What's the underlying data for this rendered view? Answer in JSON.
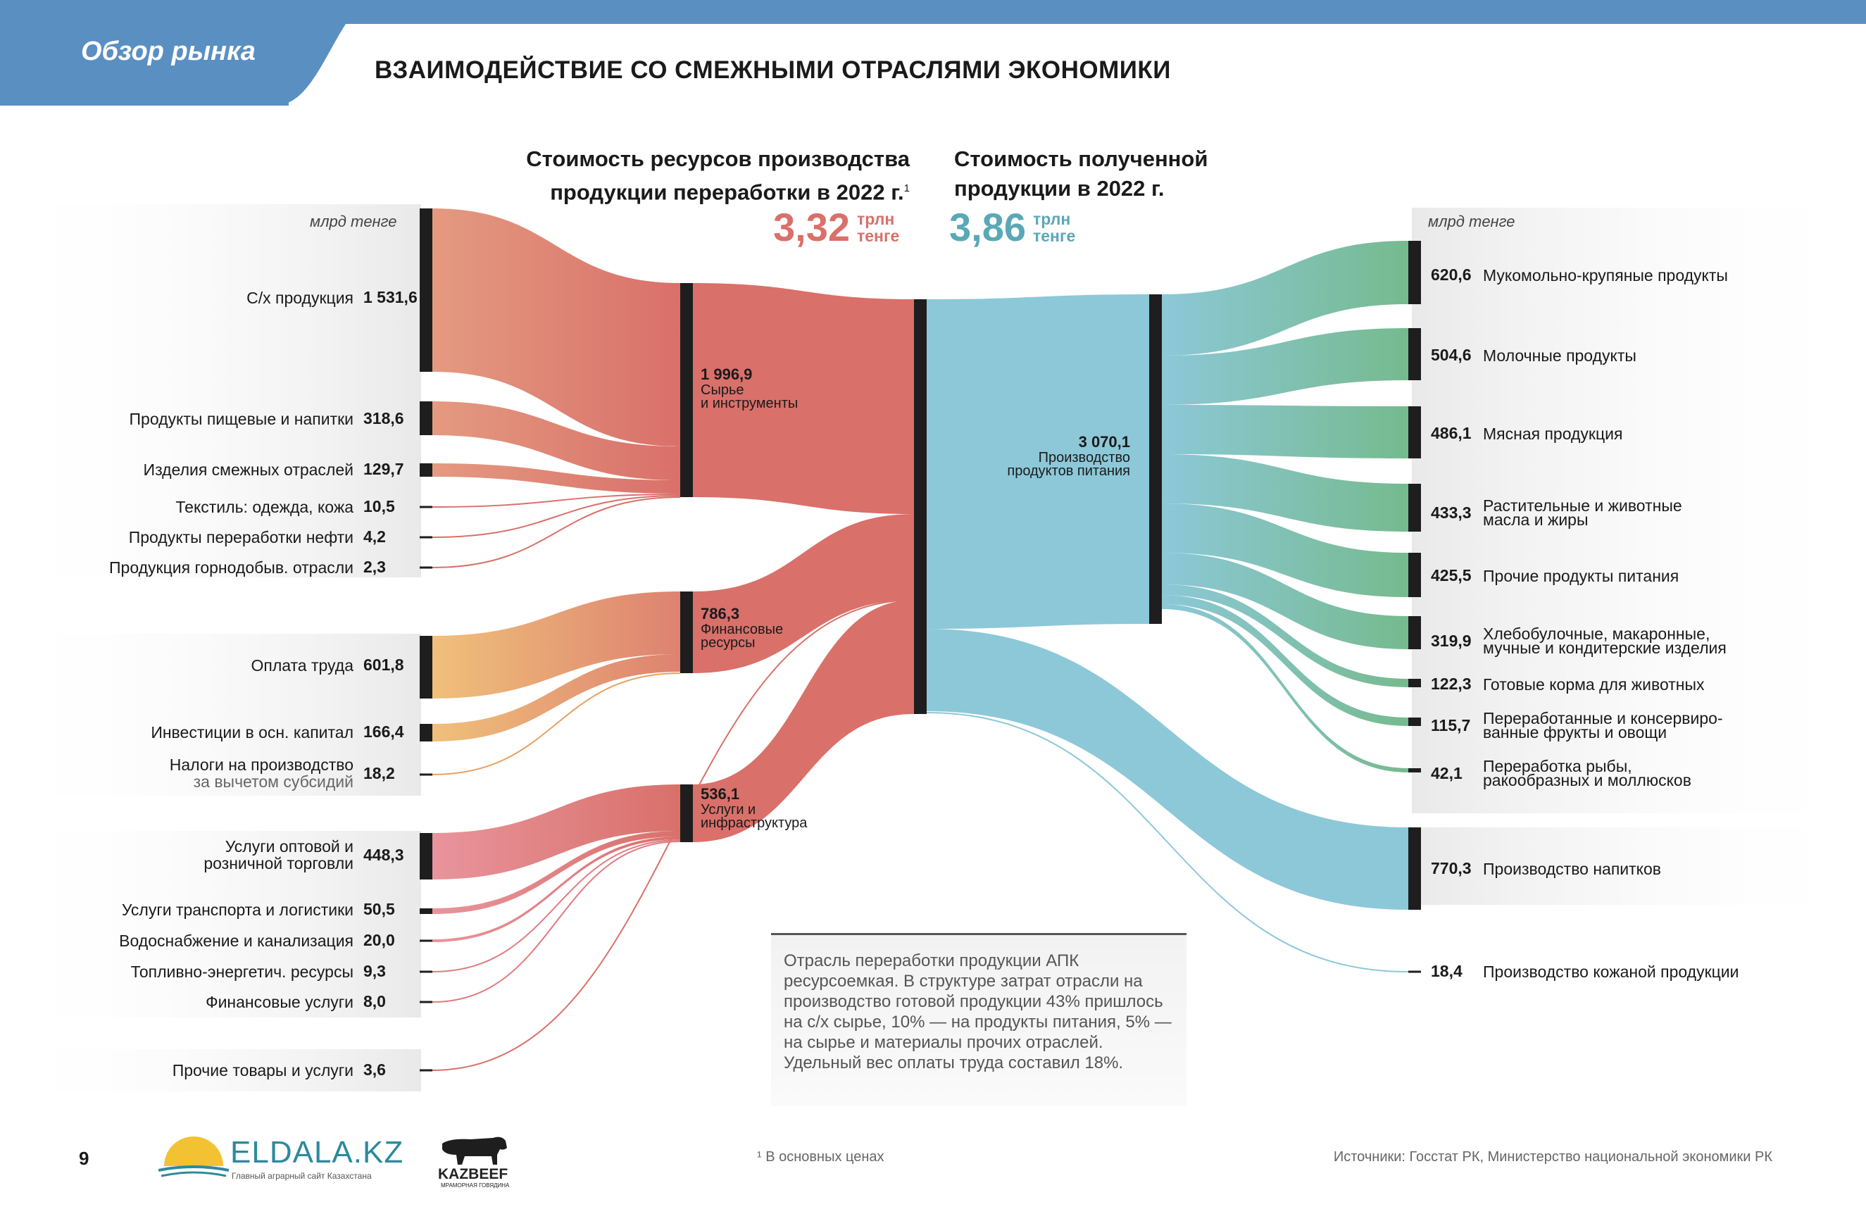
{
  "header": {
    "tagline": "Обзор рынка",
    "title": "ВЗАИМОДЕЙСТВИЕ СО СМЕЖНЫМИ ОТРАСЛЯМИ ЭКОНОМИКИ"
  },
  "left_header": {
    "line1": "Стоимость ресурсов производства",
    "line2": "продукции переработки в 2022 г.",
    "sup": "1",
    "total": "3,32",
    "unit1": "трлн",
    "unit2": "тенге"
  },
  "right_header": {
    "line1": "Стоимость полученной",
    "line2": "продукции в 2022 г.",
    "total": "3,86",
    "unit1": "трлн",
    "unit2": "тенге"
  },
  "units_label": "млрд тенге",
  "colors": {
    "topbar": "#5a8fc2",
    "red": "#d9706a",
    "orange": "#f0b870",
    "pink": "#e89098",
    "teal": "#8cc8d8",
    "green": "#76ba8e",
    "node": "#1e1e1e",
    "total_left": "#d9706a",
    "total_right": "#5aa8b6"
  },
  "inputs": [
    {
      "label": "С/х продукция",
      "sub": "",
      "value": "1 531,6"
    },
    {
      "label": "Продукты пищевые и напитки",
      "sub": "",
      "value": "318,6"
    },
    {
      "label": "Изделия смежных отраслей",
      "sub": "",
      "value": "129,7"
    },
    {
      "label": "Текстиль: одежда, кожа",
      "sub": "",
      "value": "10,5"
    },
    {
      "label": "Продукты переработки нефти",
      "sub": "",
      "value": "4,2"
    },
    {
      "label": "Продукция горнодобыв. отрасли",
      "sub": "",
      "value": "2,3"
    },
    {
      "label": "Оплата труда",
      "sub": "",
      "value": "601,8"
    },
    {
      "label": "Инвестиции в осн. капитал",
      "sub": "",
      "value": "166,4"
    },
    {
      "label": "Налоги на производство",
      "sub": "за вычетом субсидий",
      "value": "18,2"
    },
    {
      "label": "Услуги оптовой и",
      "label2": "розничной торговли",
      "sub": "",
      "value": "448,3"
    },
    {
      "label": "Услуги транспорта и логистики",
      "sub": "",
      "value": "50,5"
    },
    {
      "label": "Водоснабжение и канализация",
      "sub": "",
      "value": "20,0"
    },
    {
      "label": "Топливно-энергетич. ресурсы",
      "sub": "",
      "value": "9,3"
    },
    {
      "label": "Финансовые услуги",
      "sub": "",
      "value": "8,0"
    },
    {
      "label": "Прочие товары и услуги",
      "sub": "",
      "value": "3,6"
    }
  ],
  "groups": [
    {
      "value": "1 996,9",
      "label1": "Сырье",
      "label2": "и инструменты"
    },
    {
      "value": "786,3",
      "label1": "Финансовые",
      "label2": "ресурсы"
    },
    {
      "value": "536,1",
      "label1": "Услуги и",
      "label2": "инфраструктура"
    }
  ],
  "center_node": {
    "value": "3 070,1",
    "label1": "Производство",
    "label2": "продуктов питания"
  },
  "outputs": [
    {
      "value": "620,6",
      "label": "Мукомольно-крупяные продукты",
      "label2": ""
    },
    {
      "value": "504,6",
      "label": "Молочные продукты",
      "label2": ""
    },
    {
      "value": "486,1",
      "label": "Мясная продукция",
      "label2": ""
    },
    {
      "value": "433,3",
      "label": "Растительные и животные",
      "label2": "масла и жиры"
    },
    {
      "value": "425,5",
      "label": "Прочие продукты питания",
      "label2": ""
    },
    {
      "value": "319,9",
      "label": "Хлебобулочные, макаронные,",
      "label2": "мучные и кондитерские изделия"
    },
    {
      "value": "122,3",
      "label": "Готовые корма для животных",
      "label2": ""
    },
    {
      "value": "115,7",
      "label": "Переработанные и консервиро-",
      "label2": "ванные фрукты и овощи"
    },
    {
      "value": "42,1",
      "label": "Переработка рыбы,",
      "label2": "ракообразных и моллюсков"
    },
    {
      "value": "770,3",
      "label": "Производство напитков",
      "label2": ""
    },
    {
      "value": "18,4",
      "label": "Производство кожаной продукции",
      "label2": ""
    }
  ],
  "note": "Отрасль переработки продукции АПК ресурсоемкая. В структуре затрат отрасли на производство готовой продукции 43% пришлось на с/х сырье, 10% — на продукты питания, 5% — на сырье и материалы прочих отраслей. Удельный вес оплаты труда составил 18%.",
  "footer": {
    "page_number": "9",
    "logo1_name": "ELDALA.KZ",
    "logo1_sub": "Главный аграрный сайт Казахстана",
    "logo2_name": "KAZBEEF",
    "logo2_sub": "МРАМОРНАЯ ГОВЯДИНА",
    "footnote": "¹ В основных ценах",
    "sources": "Источники: Госстат РК, Министерство национальной экономики РК"
  }
}
